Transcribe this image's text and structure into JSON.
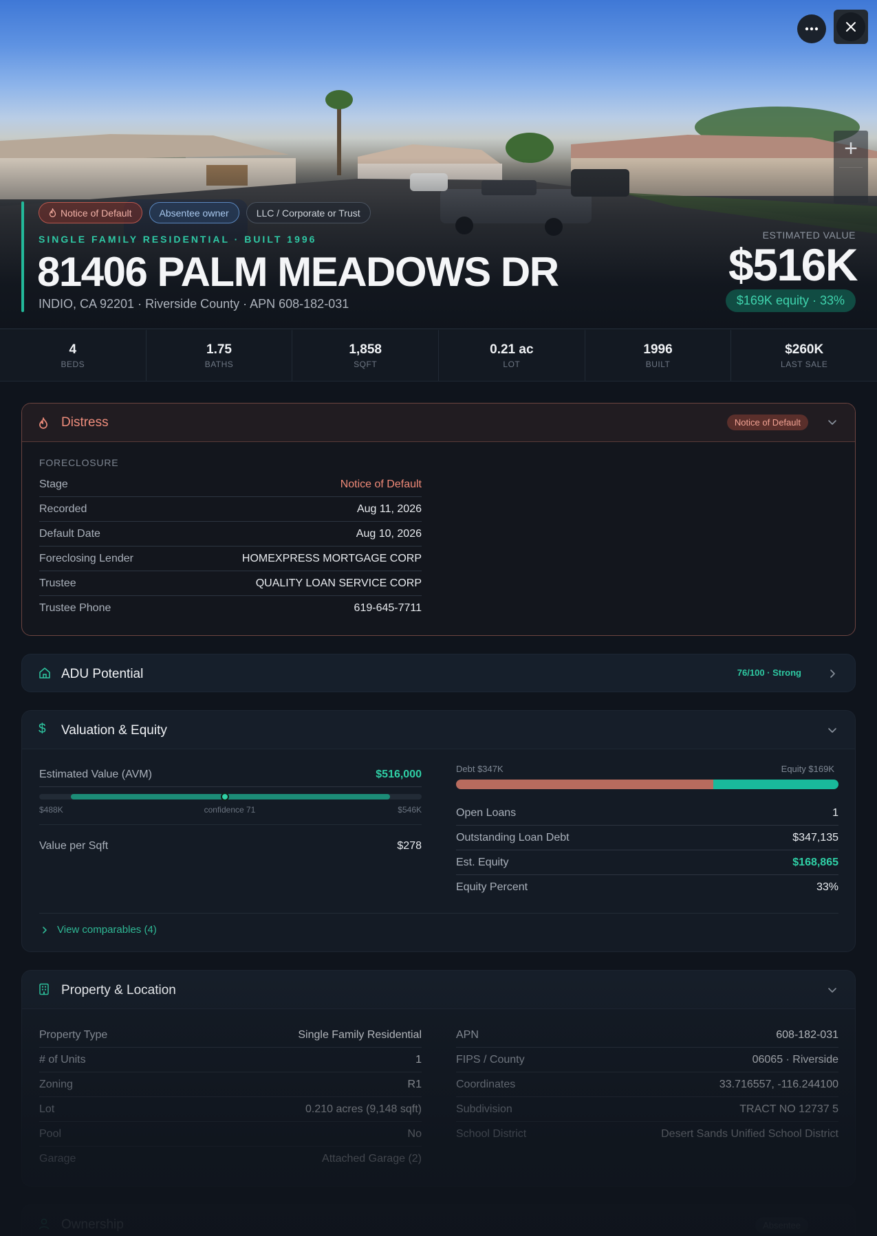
{
  "hero": {
    "chips": [
      {
        "label": "Notice of Default",
        "icon": "flame-icon"
      },
      {
        "label": "Absentee owner"
      },
      {
        "label": "LLC / Corporate or Trust"
      }
    ],
    "subtitle": "SINGLE FAMILY RESIDENTIAL · BUILT 1996",
    "title": "81406 PALM MEADOWS DR",
    "address": "INDIO, CA 92201 · Riverside County · APN 608-182-031",
    "estimated_value_label": "ESTIMATED VALUE",
    "estimated_value": "$516K",
    "equity_pill": "$169K equity · 33%",
    "zoom_in_label": "+"
  },
  "stats": [
    {
      "value": "4",
      "label": "BEDS"
    },
    {
      "value": "1.75",
      "label": "BATHS"
    },
    {
      "value": "1,858",
      "label": "SQFT"
    },
    {
      "value": "0.21 ac",
      "label": "LOT"
    },
    {
      "value": "1996",
      "label": "BUILT"
    },
    {
      "value": "$260K",
      "label": "LAST SALE"
    }
  ],
  "distress": {
    "title": "Distress",
    "badge": "Notice of Default",
    "section_label": "FORECLOSURE",
    "rows": [
      {
        "k": "Stage",
        "v": "Notice of Default"
      },
      {
        "k": "Recorded",
        "v": "Aug 11, 2026"
      },
      {
        "k": "Default Date",
        "v": "Aug 10, 2026"
      },
      {
        "k": "Foreclosing Lender",
        "v": "HOMEXPRESS MORTGAGE CORP"
      },
      {
        "k": "Trustee",
        "v": "QUALITY LOAN SERVICE CORP"
      },
      {
        "k": "Trustee Phone",
        "v": "619-645-7711"
      }
    ]
  },
  "adu": {
    "title": "ADU Potential",
    "score": "76/100 · Strong"
  },
  "valuation": {
    "title": "Valuation & Equity",
    "avm_label": "Estimated Value (AVM)",
    "avm_value": "$516,000",
    "range_low": "$488K",
    "range_high": "$546K",
    "confidence": "confidence 71",
    "range_low_num": 488000,
    "range_high_num": 546000,
    "value_num": 516000,
    "per_sqft_label": "Value per Sqft",
    "per_sqft_value": "$278",
    "debt_label": "Debt $347K",
    "equity_label": "Equity $169K",
    "debt_num": 347135,
    "equity_num": 168865,
    "rows": [
      {
        "k": "Open Loans",
        "v": "1"
      },
      {
        "k": "Outstanding Loan Debt",
        "v": "$347,135"
      },
      {
        "k": "Est. Equity",
        "v": "$168,865"
      },
      {
        "k": "Equity Percent",
        "v": "33%"
      }
    ],
    "comparables_link": "View comparables (4)"
  },
  "property": {
    "title": "Property & Location",
    "left": [
      {
        "k": "Property Type",
        "v": "Single Family Residential"
      },
      {
        "k": "# of Units",
        "v": "1"
      },
      {
        "k": "Zoning",
        "v": "R1"
      },
      {
        "k": "Lot",
        "v": "0.210 acres (9,148 sqft)"
      },
      {
        "k": "Pool",
        "v": "No"
      },
      {
        "k": "Garage",
        "v": "Attached Garage (2)"
      }
    ],
    "right": [
      {
        "k": "APN",
        "v": "608-182-031"
      },
      {
        "k": "FIPS / County",
        "v": "06065 · Riverside"
      },
      {
        "k": "Coordinates",
        "v": "33.716557, -116.244100"
      },
      {
        "k": "Subdivision",
        "v": "TRACT NO 12737 5"
      },
      {
        "k": "School District",
        "v": "Desert Sands Unified School District"
      }
    ]
  },
  "ownership": {
    "title": "Ownership",
    "badge": "Absentee"
  },
  "colors": {
    "accent": "#23b99a",
    "distress": "#ef8d7c",
    "debt": "#b86b5e",
    "equity": "#19b99b"
  }
}
